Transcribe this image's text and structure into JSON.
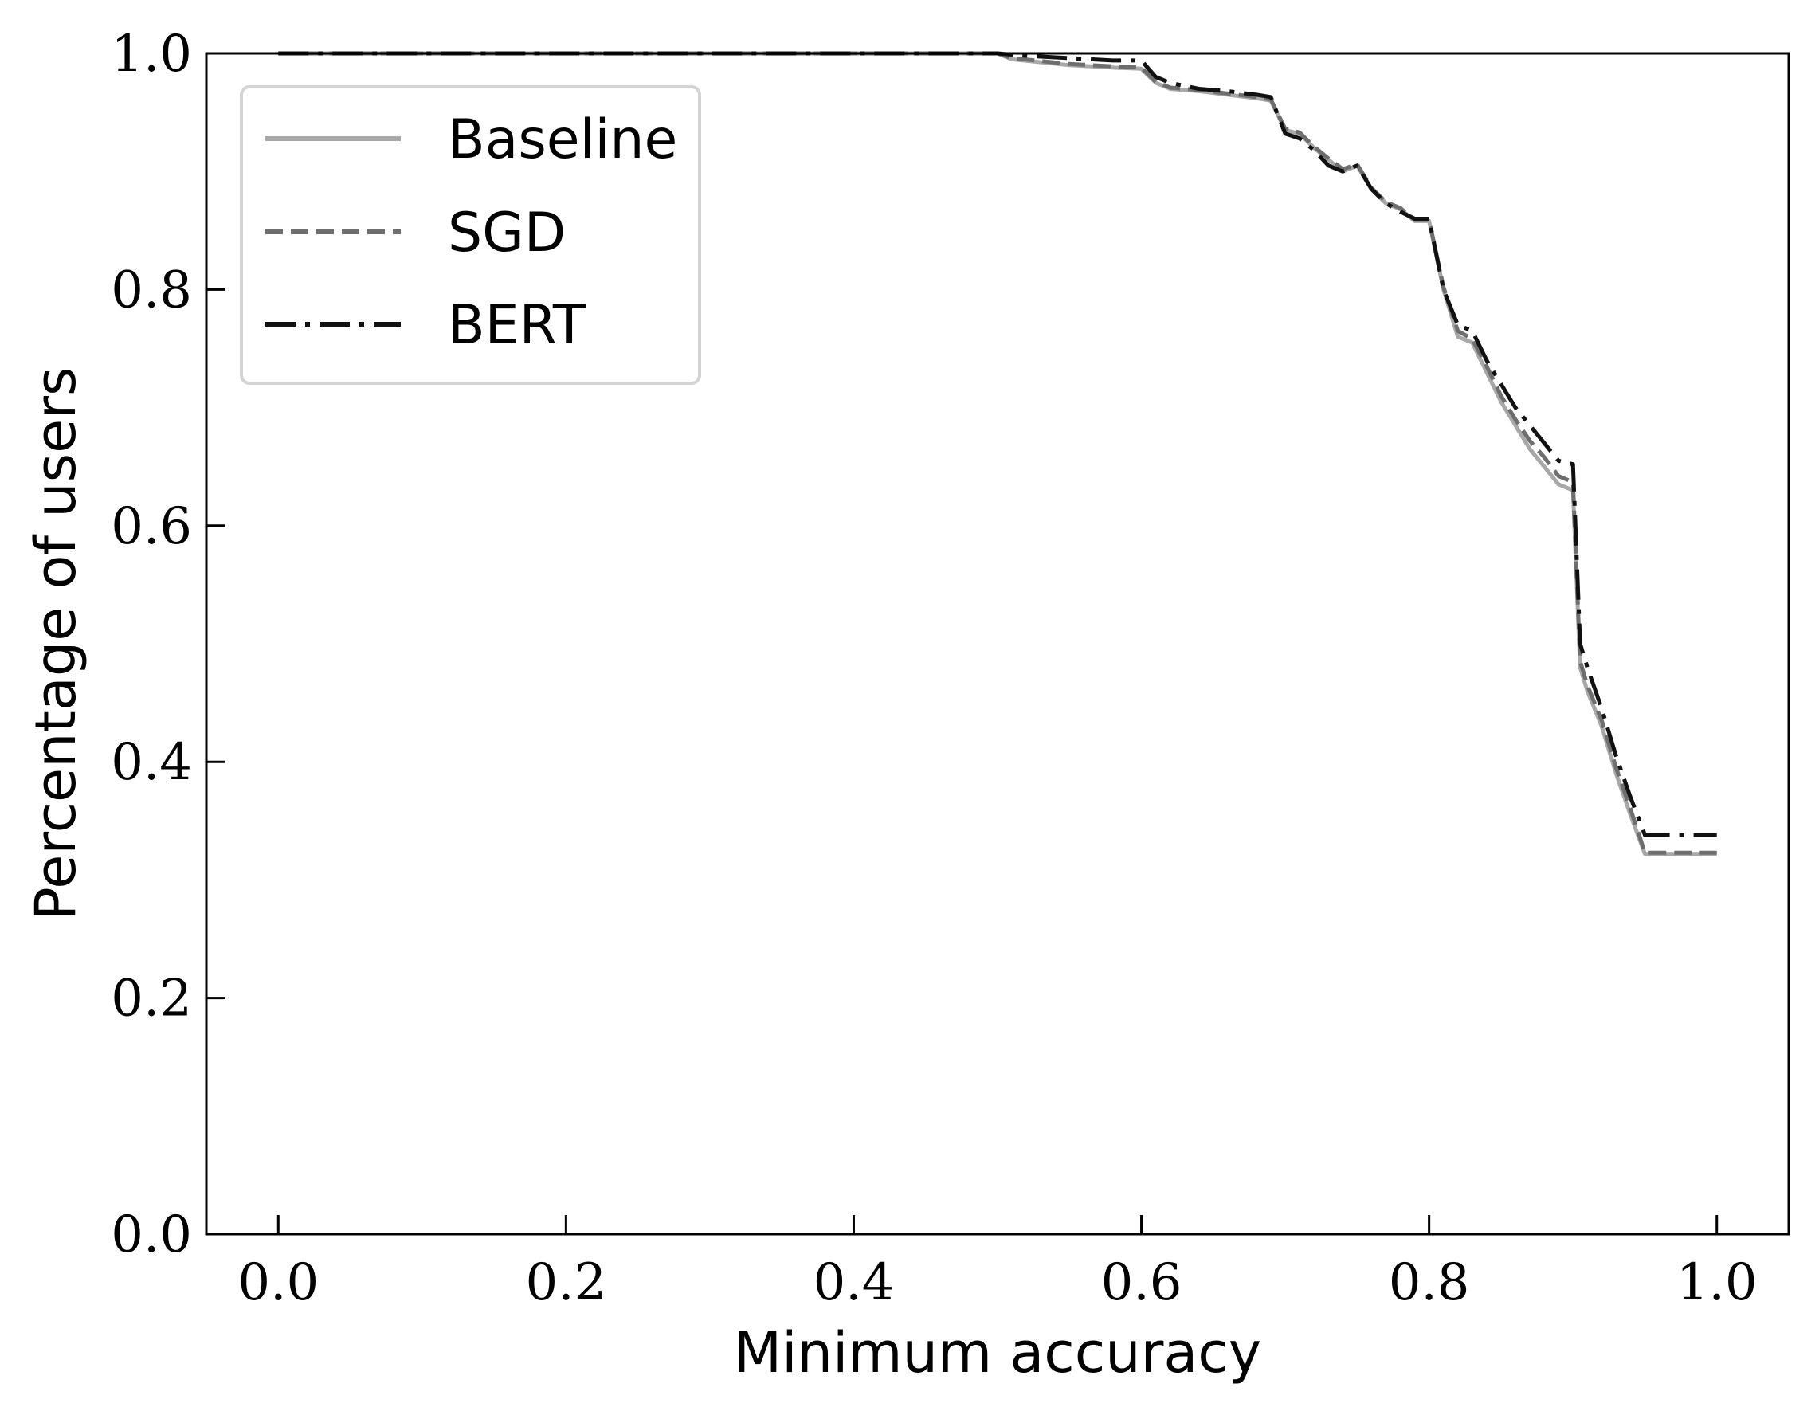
{
  "chart_data": {
    "type": "line",
    "xlabel": "Minimum accuracy",
    "ylabel": "Percentage of users",
    "xlim": [
      -0.05,
      1.05
    ],
    "ylim": [
      0.0,
      1.0
    ],
    "xticks": [
      0.0,
      0.2,
      0.4,
      0.6,
      0.8,
      1.0
    ],
    "yticks": [
      0.0,
      0.2,
      0.4,
      0.6,
      0.8,
      1.0
    ],
    "xtick_labels": [
      "0.0",
      "0.2",
      "0.4",
      "0.6",
      "0.8",
      "1.0"
    ],
    "ytick_labels": [
      "0.0",
      "0.2",
      "0.4",
      "0.6",
      "0.8",
      "1.0"
    ],
    "grid": false,
    "legend_position": "top-left",
    "series": [
      {
        "name": "Baseline",
        "style": "solid",
        "color": "#a8a8a8",
        "x": [
          0.0,
          0.5,
          0.51,
          0.55,
          0.58,
          0.6,
          0.61,
          0.62,
          0.64,
          0.66,
          0.68,
          0.69,
          0.7,
          0.71,
          0.72,
          0.73,
          0.74,
          0.75,
          0.76,
          0.77,
          0.78,
          0.79,
          0.8,
          0.81,
          0.82,
          0.83,
          0.84,
          0.85,
          0.86,
          0.87,
          0.88,
          0.89,
          0.9,
          0.905,
          0.91,
          0.92,
          0.93,
          0.94,
          0.95,
          1.0
        ],
        "y": [
          1.0,
          1.0,
          0.995,
          0.99,
          0.988,
          0.987,
          0.975,
          0.97,
          0.968,
          0.965,
          0.962,
          0.96,
          0.935,
          0.932,
          0.92,
          0.91,
          0.9,
          0.905,
          0.885,
          0.873,
          0.868,
          0.858,
          0.858,
          0.8,
          0.76,
          0.755,
          0.73,
          0.705,
          0.685,
          0.665,
          0.65,
          0.635,
          0.63,
          0.48,
          0.46,
          0.43,
          0.39,
          0.355,
          0.322,
          0.322
        ]
      },
      {
        "name": "SGD",
        "style": "dashed",
        "color": "#6e6e6e",
        "x": [
          0.0,
          0.5,
          0.51,
          0.55,
          0.58,
          0.6,
          0.61,
          0.62,
          0.64,
          0.66,
          0.68,
          0.69,
          0.7,
          0.71,
          0.72,
          0.73,
          0.74,
          0.75,
          0.76,
          0.77,
          0.78,
          0.79,
          0.8,
          0.81,
          0.82,
          0.83,
          0.84,
          0.85,
          0.86,
          0.87,
          0.88,
          0.89,
          0.9,
          0.905,
          0.91,
          0.92,
          0.93,
          0.94,
          0.95,
          1.0
        ],
        "y": [
          1.0,
          1.0,
          0.996,
          0.991,
          0.989,
          0.988,
          0.976,
          0.971,
          0.969,
          0.966,
          0.963,
          0.961,
          0.936,
          0.933,
          0.921,
          0.911,
          0.902,
          0.906,
          0.886,
          0.874,
          0.869,
          0.859,
          0.859,
          0.802,
          0.765,
          0.758,
          0.735,
          0.71,
          0.69,
          0.672,
          0.658,
          0.642,
          0.637,
          0.485,
          0.465,
          0.435,
          0.395,
          0.36,
          0.323,
          0.323
        ]
      },
      {
        "name": "BERT",
        "style": "dashdot",
        "color": "#111111",
        "x": [
          0.0,
          0.5,
          0.52,
          0.55,
          0.58,
          0.6,
          0.61,
          0.62,
          0.64,
          0.66,
          0.68,
          0.69,
          0.7,
          0.71,
          0.72,
          0.73,
          0.74,
          0.75,
          0.76,
          0.77,
          0.78,
          0.79,
          0.8,
          0.81,
          0.82,
          0.83,
          0.84,
          0.85,
          0.86,
          0.87,
          0.88,
          0.89,
          0.9,
          0.905,
          0.91,
          0.92,
          0.93,
          0.94,
          0.95,
          1.0
        ],
        "y": [
          1.0,
          1.0,
          0.998,
          0.996,
          0.994,
          0.994,
          0.98,
          0.975,
          0.97,
          0.968,
          0.965,
          0.963,
          0.932,
          0.928,
          0.918,
          0.905,
          0.9,
          0.905,
          0.885,
          0.873,
          0.866,
          0.86,
          0.86,
          0.8,
          0.77,
          0.765,
          0.74,
          0.72,
          0.7,
          0.685,
          0.67,
          0.655,
          0.652,
          0.5,
          0.48,
          0.445,
          0.405,
          0.37,
          0.338,
          0.338
        ]
      }
    ]
  }
}
